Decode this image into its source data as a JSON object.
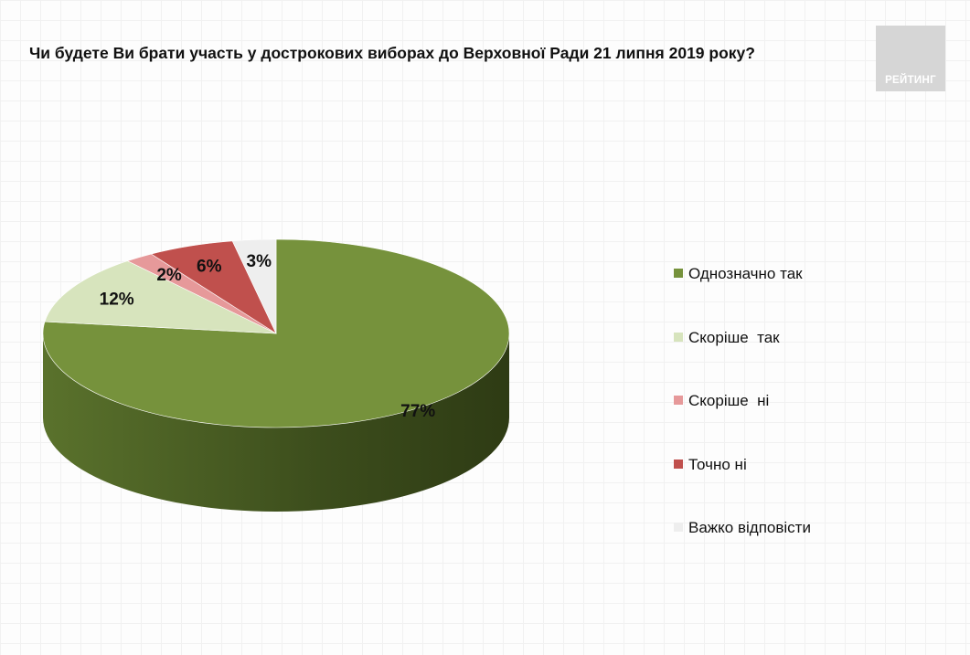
{
  "title": "Чи будете Ви брати участь у дострокових виборах до Верховної Ради 21 липня 2019 року?",
  "logo_text": "РЕЙТИНГ",
  "chart_data": {
    "type": "pie",
    "style": "3d",
    "start_angle": "12 o'clock, clockwise",
    "legend_position": "right",
    "categories": [
      "Однозначно так",
      "Скоріше  так",
      "Скоріше  ні",
      "Точно ні",
      "Важко відповісти"
    ],
    "values": [
      77,
      12,
      2,
      6,
      3
    ],
    "labels": [
      "77%",
      "12%",
      "2%",
      "6%",
      "3%"
    ],
    "colors": [
      "#76923c",
      "#d7e4bd",
      "#e6999a",
      "#c0504d",
      "#eeeeee"
    ]
  }
}
